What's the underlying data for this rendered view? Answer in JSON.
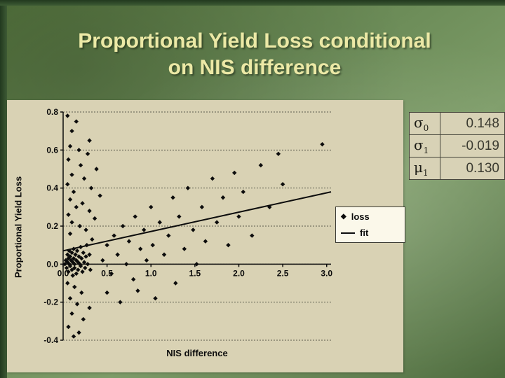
{
  "slide": {
    "title_line1": "Proportional Yield Loss conditional",
    "title_line2": "on NIS difference"
  },
  "colors": {
    "background_green": "#6c8c58",
    "frame_green": "#2c4726",
    "title_yellow": "#ece9a6",
    "chart_background": "#d9d2b4",
    "marker_black": "#0c0c0c"
  },
  "params_table": {
    "rows": [
      {
        "sym": "σ",
        "sub": "0",
        "value": "0.148"
      },
      {
        "sym": "σ",
        "sub": "1",
        "value": "-0.019"
      },
      {
        "sym": "μ",
        "sub": "1",
        "value": "0.130"
      }
    ]
  },
  "chart_data": {
    "type": "scatter",
    "title": "",
    "xlabel": "NIS difference",
    "ylabel": "Proportional Yield Loss",
    "xlim": [
      0,
      3.05
    ],
    "ylim": [
      -0.4,
      0.8
    ],
    "xticks": [
      0.0,
      0.5,
      1.0,
      1.5,
      2.0,
      2.5,
      3.0
    ],
    "yticks": [
      -0.4,
      -0.2,
      0.0,
      0.2,
      0.4,
      0.6,
      0.8
    ],
    "grid": true,
    "legend": [
      "loss",
      "fit"
    ],
    "legend_position": "right-middle",
    "series": [
      {
        "name": "loss",
        "type": "scatter",
        "points": [
          [
            0.02,
            0.0
          ],
          [
            0.03,
            0.02
          ],
          [
            0.04,
            -0.02
          ],
          [
            0.05,
            0.01
          ],
          [
            0.05,
            0.05
          ],
          [
            0.06,
            -0.04
          ],
          [
            0.06,
            0.03
          ],
          [
            0.07,
            0.0
          ],
          [
            0.07,
            0.07
          ],
          [
            0.08,
            -0.01
          ],
          [
            0.08,
            0.04
          ],
          [
            0.09,
            0.02
          ],
          [
            0.1,
            -0.03
          ],
          [
            0.1,
            0.06
          ],
          [
            0.11,
            0.01
          ],
          [
            0.11,
            -0.06
          ],
          [
            0.12,
            0.03
          ],
          [
            0.12,
            0.08
          ],
          [
            0.13,
            0.0
          ],
          [
            0.13,
            -0.02
          ],
          [
            0.14,
            0.05
          ],
          [
            0.15,
            0.02
          ],
          [
            0.15,
            -0.05
          ],
          [
            0.16,
            0.07
          ],
          [
            0.17,
            0.01
          ],
          [
            0.17,
            -0.03
          ],
          [
            0.18,
            0.04
          ],
          [
            0.19,
            0.0
          ],
          [
            0.2,
            0.09
          ],
          [
            0.2,
            -0.01
          ],
          [
            0.21,
            0.03
          ],
          [
            0.22,
            -0.04
          ],
          [
            0.23,
            0.06
          ],
          [
            0.24,
            0.01
          ],
          [
            0.25,
            -0.02
          ],
          [
            0.26,
            0.04
          ],
          [
            0.27,
            0.1
          ],
          [
            0.28,
            0.0
          ],
          [
            0.3,
            0.05
          ],
          [
            0.31,
            -0.03
          ],
          [
            0.05,
            0.78
          ],
          [
            0.15,
            0.75
          ],
          [
            0.1,
            0.7
          ],
          [
            0.3,
            0.65
          ],
          [
            0.08,
            0.62
          ],
          [
            0.18,
            0.6
          ],
          [
            0.28,
            0.58
          ],
          [
            0.06,
            0.55
          ],
          [
            0.2,
            0.52
          ],
          [
            0.38,
            0.5
          ],
          [
            0.1,
            0.47
          ],
          [
            0.24,
            0.45
          ],
          [
            0.05,
            0.42
          ],
          [
            0.32,
            0.4
          ],
          [
            0.12,
            0.38
          ],
          [
            0.42,
            0.36
          ],
          [
            0.08,
            0.34
          ],
          [
            0.22,
            0.32
          ],
          [
            0.15,
            0.3
          ],
          [
            0.3,
            0.28
          ],
          [
            0.06,
            0.26
          ],
          [
            0.36,
            0.24
          ],
          [
            0.1,
            0.22
          ],
          [
            0.19,
            0.2
          ],
          [
            0.26,
            0.18
          ],
          [
            0.08,
            0.16
          ],
          [
            0.33,
            0.13
          ],
          [
            0.05,
            -0.1
          ],
          [
            0.13,
            -0.12
          ],
          [
            0.21,
            -0.15
          ],
          [
            0.08,
            -0.18
          ],
          [
            0.16,
            -0.21
          ],
          [
            0.3,
            -0.23
          ],
          [
            0.1,
            -0.26
          ],
          [
            0.23,
            -0.29
          ],
          [
            0.06,
            -0.33
          ],
          [
            0.18,
            -0.36
          ],
          [
            0.12,
            -0.38
          ],
          [
            0.45,
            0.02
          ],
          [
            0.5,
            0.1
          ],
          [
            0.5,
            -0.15
          ],
          [
            0.55,
            -0.05
          ],
          [
            0.58,
            0.15
          ],
          [
            0.62,
            0.05
          ],
          [
            0.65,
            -0.2
          ],
          [
            0.68,
            0.2
          ],
          [
            0.72,
            0.0
          ],
          [
            0.75,
            0.12
          ],
          [
            0.8,
            -0.08
          ],
          [
            0.82,
            0.25
          ],
          [
            0.85,
            -0.14
          ],
          [
            0.88,
            0.08
          ],
          [
            0.92,
            0.18
          ],
          [
            0.95,
            0.02
          ],
          [
            1.0,
            0.3
          ],
          [
            1.02,
            0.1
          ],
          [
            1.05,
            -0.18
          ],
          [
            1.1,
            0.22
          ],
          [
            1.15,
            0.05
          ],
          [
            1.2,
            0.15
          ],
          [
            1.25,
            0.35
          ],
          [
            1.28,
            -0.1
          ],
          [
            1.32,
            0.25
          ],
          [
            1.38,
            0.08
          ],
          [
            1.42,
            0.4
          ],
          [
            1.48,
            0.18
          ],
          [
            1.52,
            0.0
          ],
          [
            1.58,
            0.3
          ],
          [
            1.62,
            0.12
          ],
          [
            1.7,
            0.45
          ],
          [
            1.75,
            0.22
          ],
          [
            1.82,
            0.35
          ],
          [
            1.88,
            0.1
          ],
          [
            1.95,
            0.48
          ],
          [
            2.0,
            0.25
          ],
          [
            2.05,
            0.38
          ],
          [
            2.15,
            0.15
          ],
          [
            2.25,
            0.52
          ],
          [
            2.35,
            0.3
          ],
          [
            2.45,
            0.58
          ],
          [
            2.5,
            0.42
          ],
          [
            2.95,
            0.63
          ]
        ]
      },
      {
        "name": "fit",
        "type": "line",
        "points": [
          [
            0,
            0.07
          ],
          [
            3.05,
            0.38
          ]
        ]
      }
    ]
  }
}
